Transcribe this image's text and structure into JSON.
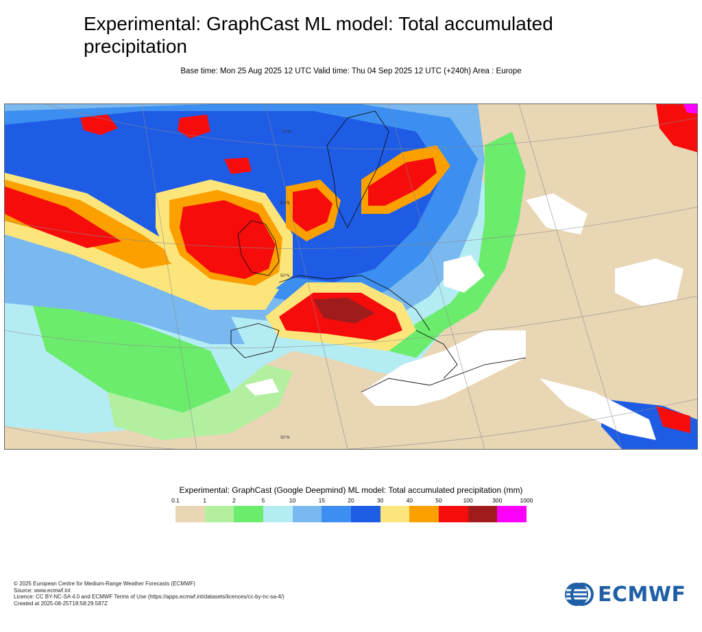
{
  "header": {
    "title": "Experimental: GraphCast ML model: Total accumulated precipitation",
    "subtitle": "Base time: Mon 25 Aug 2025 12 UTC Valid time: Thu 04 Sep 2025 12 UTC (+240h) Area : Europe"
  },
  "map": {
    "region": "Europe",
    "parallel_labels": [
      "70°N",
      "60°N",
      "50°N",
      "30°N"
    ]
  },
  "legend": {
    "title": "Experimental: GraphCast (Google Deepmind) ML model: Total accumulated precipitation (mm)",
    "thresholds": [
      "0.1",
      "1",
      "2",
      "5",
      "10",
      "15",
      "20",
      "30",
      "40",
      "50",
      "100",
      "300",
      "1000"
    ],
    "colors": [
      "#e8d6b4",
      "#b2f0a0",
      "#6cec6c",
      "#b4ecf4",
      "#7ab8f0",
      "#3c8ef0",
      "#1e5ce6",
      "#fce67c",
      "#fca000",
      "#f70c0c",
      "#a01c1c",
      "#fc00fc"
    ]
  },
  "footer": {
    "lines": [
      "© 2025 European Centre for Medium-Range Weather Forecasts (ECMWF)",
      "Source: www.ecmwf.int",
      "Licence: CC BY-NC-SA 4.0 and ECMWF Terms of Use (https://apps.ecmwf.int/datasets/licences/cc-by-nc-sa-4/)",
      "Created at 2025-08-25T18:58:29.587Z"
    ]
  },
  "logo": {
    "text": "ECMWF",
    "color": "#1f5fa6",
    "icon": "ecmwf-logo-icon"
  }
}
